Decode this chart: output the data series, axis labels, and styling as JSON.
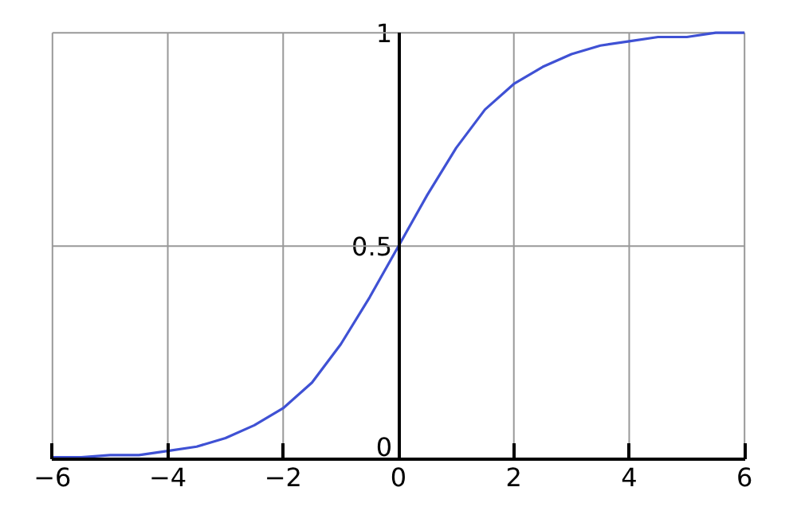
{
  "chart_data": {
    "type": "line",
    "x": [
      -6,
      -5.5,
      -5,
      -4.5,
      -4,
      -3.5,
      -3,
      -2.5,
      -2,
      -1.5,
      -1,
      -0.5,
      0,
      0.5,
      1,
      1.5,
      2,
      2.5,
      3,
      3.5,
      4,
      4.5,
      5,
      5.5,
      6
    ],
    "series": [
      {
        "color": "#3f51d4",
        "values": [
          0.005,
          0.005,
          0.01,
          0.01,
          0.02,
          0.03,
          0.05,
          0.08,
          0.12,
          0.18,
          0.27,
          0.38,
          0.5,
          0.62,
          0.73,
          0.82,
          0.88,
          0.92,
          0.95,
          0.97,
          0.98,
          0.99,
          0.99,
          1.0,
          1.0
        ]
      }
    ],
    "xlim": [
      -6,
      6
    ],
    "ylim": [
      0,
      1
    ],
    "xticks": [
      -6,
      -4,
      -2,
      0,
      2,
      4,
      6
    ],
    "yticks": [
      0,
      {
        "value": 0.5,
        "label": "0.5"
      },
      1
    ],
    "grid": true
  }
}
